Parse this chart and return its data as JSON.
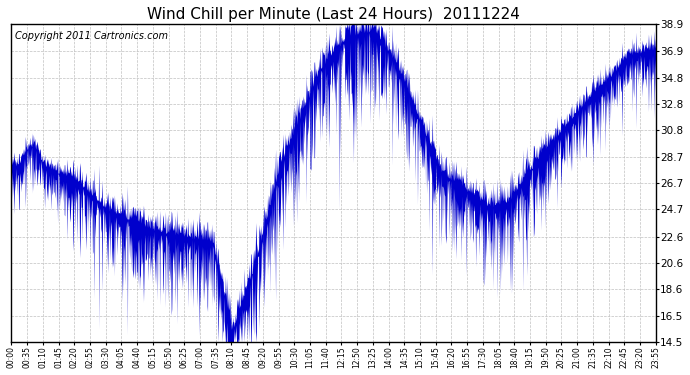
{
  "title": "Wind Chill per Minute (Last 24 Hours)  20111224",
  "copyright": "Copyright 2011 Cartronics.com",
  "yticks": [
    14.5,
    16.5,
    18.6,
    20.6,
    22.6,
    24.7,
    26.7,
    28.7,
    30.8,
    32.8,
    34.8,
    36.9,
    38.9
  ],
  "ymin": 14.5,
  "ymax": 38.9,
  "line_color": "#0000cc",
  "bg_color": "#ffffff",
  "grid_color": "#c0c0c0",
  "title_fontsize": 11,
  "copyright_fontsize": 7,
  "xtick_labels": [
    "00:00",
    "00:35",
    "01:10",
    "01:45",
    "02:20",
    "02:55",
    "03:30",
    "04:05",
    "04:40",
    "05:15",
    "05:50",
    "06:25",
    "07:00",
    "07:35",
    "08:10",
    "08:45",
    "09:20",
    "09:55",
    "10:30",
    "11:05",
    "11:40",
    "12:15",
    "12:50",
    "13:25",
    "14:00",
    "14:35",
    "15:10",
    "15:45",
    "16:20",
    "16:55",
    "17:30",
    "18:05",
    "18:40",
    "19:15",
    "19:50",
    "20:25",
    "21:00",
    "21:35",
    "22:10",
    "22:45",
    "23:20",
    "23:55"
  ]
}
